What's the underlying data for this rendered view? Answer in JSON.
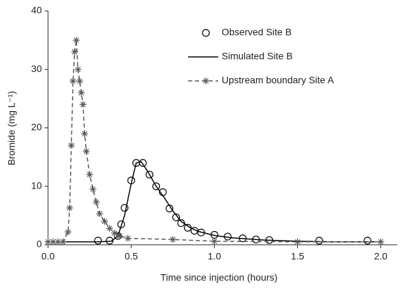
{
  "chart_data": {
    "type": "line",
    "x_label": "Time since injection (hours)",
    "y_label": "Bromide (mg L⁻¹)",
    "xlim": [
      0,
      2.1
    ],
    "ylim": [
      0,
      40
    ],
    "xticks": [
      {
        "value": 0,
        "label": "0.0"
      },
      {
        "value": 0.5,
        "label": "0.5"
      },
      {
        "value": 1,
        "label": "1.0"
      },
      {
        "value": 1.5,
        "label": "1.5"
      },
      {
        "value": 2,
        "label": "2.0"
      }
    ],
    "yticks": [
      0,
      10,
      20,
      30,
      40
    ],
    "grid": false,
    "legend": "upper right",
    "series": [
      {
        "name": "Observed Site B",
        "color": "#000000",
        "line_style": "none",
        "marker": "circle",
        "x": [
          0.3,
          0.37,
          0.42,
          0.44,
          0.46,
          0.5,
          0.53,
          0.57,
          0.61,
          0.65,
          0.69,
          0.73,
          0.77,
          0.8,
          0.84,
          0.88,
          0.92,
          1.0,
          1.08,
          1.17,
          1.25,
          1.33,
          1.63,
          1.92
        ],
        "values": [
          0.7,
          0.7,
          1.5,
          3.5,
          6.3,
          11,
          14,
          14,
          12,
          10,
          9,
          6.2,
          4.7,
          3.7,
          2.9,
          2.4,
          2.1,
          1.7,
          1.4,
          1.1,
          0.9,
          0.8,
          0.7,
          0.7
        ]
      },
      {
        "name": "Simulated Site B",
        "color": "#000000",
        "line_style": "solid",
        "marker": "none",
        "x": [
          0,
          0.3,
          0.38,
          0.42,
          0.46,
          0.5,
          0.53,
          0.56,
          0.6,
          0.65,
          0.7,
          0.75,
          0.8,
          0.85,
          0.9,
          1.0,
          1.1,
          1.2,
          1.3,
          1.5,
          1.7,
          2.0
        ],
        "values": [
          0.5,
          0.5,
          0.6,
          1.5,
          5,
          10.5,
          14,
          14.2,
          12.5,
          10,
          8,
          5.8,
          4,
          3,
          2.3,
          1.6,
          1.2,
          1,
          0.8,
          0.6,
          0.5,
          0.5
        ]
      },
      {
        "name": "Upstream boundary Site A",
        "color": "#555555",
        "line_style": "dashed",
        "marker": "asterisk",
        "x": [
          0,
          0.03,
          0.06,
          0.09,
          0.12,
          0.13,
          0.14,
          0.15,
          0.16,
          0.17,
          0.18,
          0.19,
          0.2,
          0.21,
          0.22,
          0.23,
          0.25,
          0.27,
          0.29,
          0.31,
          0.34,
          0.37,
          0.4,
          0.43,
          0.48,
          0.75,
          1.0,
          1.5,
          2.0
        ],
        "values": [
          0.5,
          0.5,
          0.5,
          0.5,
          2.2,
          6.3,
          17,
          28,
          33,
          35,
          30,
          28,
          26,
          24,
          19,
          16,
          12,
          9.5,
          7.3,
          5.3,
          4,
          2.8,
          2,
          1.5,
          1.1,
          0.9,
          0.6,
          0.5,
          0.5
        ]
      }
    ]
  }
}
